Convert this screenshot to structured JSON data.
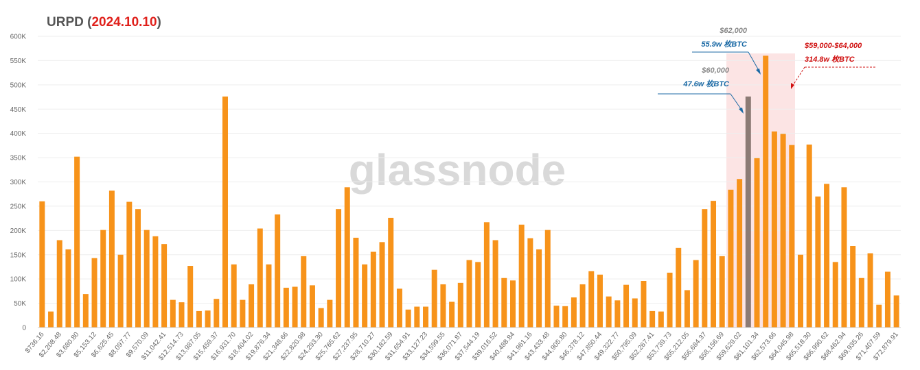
{
  "chart_data": {
    "type": "bar",
    "title": [
      "URPD (",
      "2024.10.10",
      ")"
    ],
    "watermark": "glassnode",
    "categories": [
      "$736.16",
      null,
      "$2,208.48",
      null,
      "$3,680.80",
      null,
      "$5,153.12",
      null,
      "$6,625.45",
      null,
      "$8,097.77",
      null,
      "$9,570.09",
      null,
      "$11,042.41",
      null,
      "$12,514.73",
      null,
      "$13,987.05",
      null,
      "$15,459.37",
      null,
      "$16,931.70",
      null,
      "$18,404.02",
      null,
      "$19,876.34",
      null,
      "$21,348.66",
      null,
      "$22,820.98",
      null,
      "$24,293.30",
      null,
      "$25,765.62",
      null,
      "$27,237.95",
      null,
      "$28,710.27",
      null,
      "$30,182.59",
      null,
      "$31,654.91",
      null,
      "$33,127.23",
      null,
      "$34,599.55",
      null,
      "$36,071.87",
      null,
      "$37,544.19",
      null,
      "$39,016.52",
      null,
      "$40,488.84",
      null,
      "$41,961.16",
      null,
      "$43,433.48",
      null,
      "$44,905.80",
      null,
      "$46,378.12",
      null,
      "$47,850.44",
      null,
      "$49,322.77",
      null,
      "$50,795.09",
      null,
      "$52,267.41",
      null,
      "$53,739.73",
      null,
      "$55,212.05",
      null,
      "$56,684.37",
      null,
      "$58,156.69",
      null,
      "$59,629.02",
      null,
      "$61,101.34",
      null,
      "$62,573.66",
      null,
      "$64,045.98",
      null,
      "$65,518.30",
      null,
      "$66,990.62",
      null,
      "$68,462.94",
      null,
      "$69,935.26",
      null,
      "$71,407.59",
      null,
      "$72,879.91"
    ],
    "values": [
      260000,
      33000,
      180000,
      161000,
      352000,
      69000,
      143000,
      201000,
      282000,
      150000,
      259000,
      244000,
      201000,
      188000,
      172000,
      57000,
      52000,
      127000,
      34000,
      35000,
      59000,
      476000,
      130000,
      57000,
      89000,
      204000,
      130000,
      233000,
      82000,
      84000,
      147000,
      87000,
      40000,
      57000,
      244000,
      289000,
      185000,
      130000,
      156000,
      176000,
      226000,
      80000,
      37000,
      43000,
      43000,
      119000,
      89000,
      53000,
      92000,
      139000,
      135000,
      217000,
      180000,
      102000,
      97000,
      212000,
      184000,
      161000,
      201000,
      45000,
      44000,
      62000,
      89000,
      116000,
      109000,
      64000,
      56000,
      88000,
      60000,
      96000,
      34000,
      33000,
      113000,
      164000,
      77000,
      139000,
      244000,
      261000,
      147000,
      284000,
      306000,
      476000,
      349000,
      560000,
      404000,
      399000,
      376000,
      150000,
      377000,
      270000,
      296000,
      135000,
      289000,
      168000,
      102000,
      153000,
      47000,
      115000,
      66000
    ],
    "color": "#f7931a",
    "highlight_index": 81,
    "highlight_color": "#8c7b75",
    "ylim": [
      0,
      600000
    ],
    "yticks": [
      0,
      {
        "value": 50000,
        "label": "50K"
      },
      {
        "value": 100000,
        "label": "100K"
      },
      {
        "value": 150000,
        "label": "150K"
      },
      {
        "value": 200000,
        "label": "200K"
      },
      {
        "value": 250000,
        "label": "250K"
      },
      {
        "value": 300000,
        "label": "300K"
      },
      {
        "value": 350000,
        "label": "350K"
      },
      {
        "value": 400000,
        "label": "400K"
      },
      {
        "value": 450000,
        "label": "450K"
      },
      {
        "value": 500000,
        "label": "500K"
      },
      {
        "value": 550000,
        "label": "550K"
      },
      {
        "value": 600000,
        "label": "600K"
      }
    ],
    "grid": true,
    "annotations": [
      "$62,000",
      "55.9w 枚BTC",
      "$60,000",
      "47.6w 枚BTC",
      "$59,000-$64,000",
      "314.8w 枚BTC"
    ]
  }
}
